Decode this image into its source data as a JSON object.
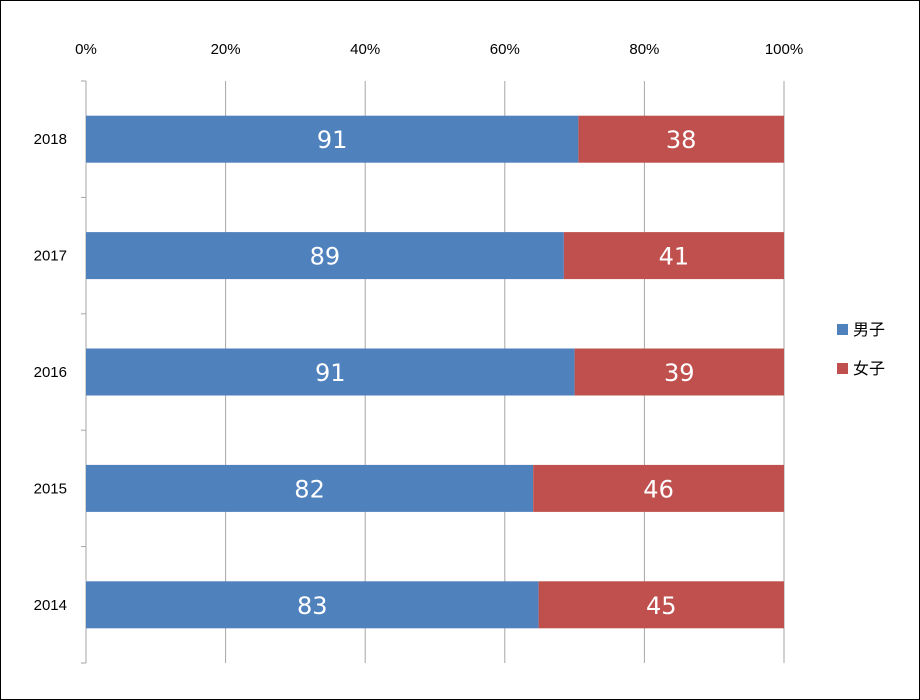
{
  "chart_data": {
    "type": "bar",
    "orientation": "horizontal",
    "stacked": "percent",
    "categories": [
      "2018",
      "2017",
      "2016",
      "2015",
      "2014"
    ],
    "series": [
      {
        "name": "男子",
        "values": [
          91,
          89,
          91,
          82,
          83
        ],
        "color": "#4f81bd"
      },
      {
        "name": "女子",
        "values": [
          38,
          41,
          39,
          46,
          45
        ],
        "color": "#c0504d"
      }
    ],
    "x_ticks": [
      "0%",
      "20%",
      "40%",
      "60%",
      "80%",
      "100%"
    ],
    "xlim": [
      0,
      100
    ],
    "title": "",
    "xlabel": "",
    "ylabel": "",
    "grid": "vertical",
    "legend_position": "right"
  }
}
